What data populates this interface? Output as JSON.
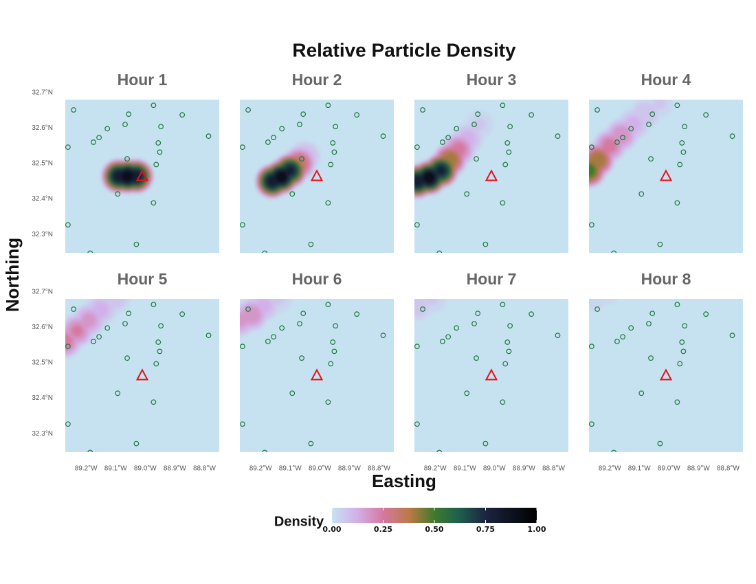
{
  "chart_data": {
    "type": "density-map",
    "title": "Relative Particle Density",
    "x_label": "Easting",
    "y_label": "Northing",
    "xlim": [
      -89.27,
      -88.75
    ],
    "ylim": [
      32.248,
      32.68
    ],
    "xticks": [
      {
        "value": -89.2,
        "label": "89.2°W"
      },
      {
        "value": -89.1,
        "label": "89.1°W"
      },
      {
        "value": -89.0,
        "label": "89.0°W"
      },
      {
        "value": -88.9,
        "label": "88.9°W"
      },
      {
        "value": -88.8,
        "label": "88.8°W"
      }
    ],
    "yticks": [
      {
        "value": 32.3,
        "label": "32.3°N"
      },
      {
        "value": 32.4,
        "label": "32.4°N"
      },
      {
        "value": 32.5,
        "label": "32.5°N"
      },
      {
        "value": 32.6,
        "label": "32.6°N"
      },
      {
        "value": 32.7,
        "label": "32.7°N"
      }
    ],
    "legend_title": "Density",
    "colorbar_ticks": [
      {
        "value": 0,
        "label": "0.00"
      },
      {
        "value": 0.25,
        "label": "0.25"
      },
      {
        "value": 0.5,
        "label": "0.50"
      },
      {
        "value": 0.75,
        "label": "0.75"
      },
      {
        "value": 1,
        "label": "1.00"
      }
    ],
    "colorscale": [
      [
        0,
        "#c6e2f0"
      ],
      [
        0.12,
        "#d3b0ea"
      ],
      [
        0.25,
        "#d6789f"
      ],
      [
        0.38,
        "#b97a45"
      ],
      [
        0.5,
        "#3f7a2c"
      ],
      [
        0.62,
        "#1f5f4e"
      ],
      [
        0.75,
        "#1c2440"
      ],
      [
        1,
        "#000000"
      ]
    ],
    "station_color": "#1a7a3a",
    "source_color": "#e8101a",
    "stations": {
      "x": [
        -89.242,
        -89.261,
        -89.175,
        -89.156,
        -89.128,
        -89.056,
        -89.068,
        -88.972,
        -88.875,
        -88.947,
        -88.956,
        -88.951,
        -88.786,
        -89.061,
        -88.963,
        -89.093,
        -88.972,
        -89.261,
        -89.03,
        -89.186
      ],
      "y": [
        32.651,
        32.546,
        32.56,
        32.573,
        32.598,
        32.639,
        32.61,
        32.664,
        32.637,
        32.604,
        32.558,
        32.532,
        32.577,
        32.513,
        32.497,
        32.414,
        32.389,
        32.327,
        32.272,
        32.247
      ]
    },
    "source": {
      "x": -89.01,
      "y": 32.464
    },
    "facets": [
      {
        "title": "Hour 1",
        "x": [
          -89.09,
          -89.06,
          -89.03
        ],
        "y": [
          32.464,
          32.464,
          32.464
        ],
        "density": [
          0.9,
          1,
          0.9
        ]
      },
      {
        "title": "Hour 2",
        "x": [
          -89.16,
          -89.13,
          -89.1,
          -89.07,
          -89.05
        ],
        "y": [
          32.45,
          32.462,
          32.48,
          32.5,
          32.52
        ],
        "density": [
          0.9,
          1,
          0.85,
          0.4,
          0.15
        ]
      },
      {
        "title": "Hour 3",
        "x": [
          -89.26,
          -89.22,
          -89.18,
          -89.15,
          -89.12,
          -89.09,
          -89.05
        ],
        "y": [
          32.45,
          32.46,
          32.48,
          32.51,
          32.54,
          32.57,
          32.61
        ],
        "density": [
          0.9,
          1,
          0.85,
          0.5,
          0.3,
          0.15,
          0.08
        ]
      },
      {
        "title": "Hour 4",
        "x": [
          -89.27,
          -89.24,
          -89.2,
          -89.16,
          -89.12,
          -89.08,
          -89.03
        ],
        "y": [
          32.48,
          32.51,
          32.55,
          32.58,
          32.61,
          32.64,
          32.67
        ],
        "density": [
          0.6,
          0.5,
          0.3,
          0.25,
          0.15,
          0.12,
          0.08
        ]
      },
      {
        "title": "Hour 5",
        "x": [
          -89.27,
          -89.23,
          -89.19,
          -89.15,
          -89.1
        ],
        "y": [
          32.56,
          32.59,
          32.62,
          32.65,
          32.68
        ],
        "density": [
          0.3,
          0.28,
          0.22,
          0.15,
          0.1
        ]
      },
      {
        "title": "Hour 6",
        "x": [
          -89.27,
          -89.23,
          -89.19,
          -89.14
        ],
        "y": [
          32.62,
          32.635,
          32.66,
          32.68
        ],
        "density": [
          0.22,
          0.25,
          0.15,
          0.08
        ]
      },
      {
        "title": "Hour 7",
        "x": [
          -89.26,
          -89.21
        ],
        "y": [
          32.66,
          32.68
        ],
        "density": [
          0.1,
          0.08
        ]
      },
      {
        "title": "Hour 8",
        "x": [
          -89.25,
          -89.2
        ],
        "y": [
          32.68,
          32.69
        ],
        "density": [
          0.05,
          0.04
        ]
      }
    ]
  }
}
